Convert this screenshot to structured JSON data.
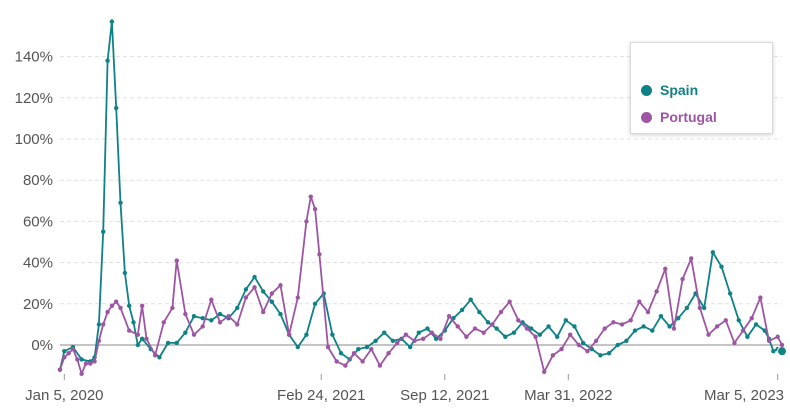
{
  "chart_data": {
    "type": "line",
    "title": "",
    "xlabel": "",
    "ylabel": "",
    "x_tick_labels": [
      "Jan 5, 2020",
      "Feb 24, 2021",
      "Sep 12, 2021",
      "Mar 31, 2022",
      "Mar 5, 2023"
    ],
    "y_tick_labels": [
      "0%",
      "20%",
      "40%",
      "60%",
      "80%",
      "100%",
      "120%",
      "140%"
    ],
    "ylim": [
      -15,
      160
    ],
    "grid": true,
    "legend_position": "top-right",
    "x_start": "2019-12-29",
    "x_end": "2023-03-12",
    "series": [
      {
        "name": "Spain",
        "color": "#0e8285",
        "points": [
          [
            "2019-12-29",
            -12
          ],
          [
            "2020-01-05",
            -3
          ],
          [
            "2020-01-19",
            -1
          ],
          [
            "2020-02-02",
            -7
          ],
          [
            "2020-02-16",
            -8
          ],
          [
            "2020-02-23",
            -6
          ],
          [
            "2020-03-01",
            10
          ],
          [
            "2020-03-08",
            55
          ],
          [
            "2020-03-15",
            138
          ],
          [
            "2020-03-22",
            157
          ],
          [
            "2020-03-29",
            115
          ],
          [
            "2020-04-05",
            69
          ],
          [
            "2020-04-12",
            35
          ],
          [
            "2020-04-19",
            19
          ],
          [
            "2020-04-26",
            11
          ],
          [
            "2020-05-03",
            0
          ],
          [
            "2020-05-10",
            3
          ],
          [
            "2020-05-24",
            -2
          ],
          [
            "2020-06-07",
            -6
          ],
          [
            "2020-06-21",
            1
          ],
          [
            "2020-07-05",
            1
          ],
          [
            "2020-07-19",
            6
          ],
          [
            "2020-08-02",
            14
          ],
          [
            "2020-08-16",
            13
          ],
          [
            "2020-08-30",
            12
          ],
          [
            "2020-09-13",
            15
          ],
          [
            "2020-09-27",
            13
          ],
          [
            "2020-10-11",
            18
          ],
          [
            "2020-10-25",
            27
          ],
          [
            "2020-11-08",
            33
          ],
          [
            "2020-11-22",
            26
          ],
          [
            "2020-12-06",
            21
          ],
          [
            "2020-12-20",
            15
          ],
          [
            "2021-01-03",
            5
          ],
          [
            "2021-01-17",
            -1
          ],
          [
            "2021-01-31",
            5
          ],
          [
            "2021-02-14",
            20
          ],
          [
            "2021-02-28",
            25
          ],
          [
            "2021-03-14",
            5
          ],
          [
            "2021-03-28",
            -4
          ],
          [
            "2021-04-11",
            -7
          ],
          [
            "2021-04-25",
            -2
          ],
          [
            "2021-05-09",
            -1
          ],
          [
            "2021-05-23",
            2
          ],
          [
            "2021-06-06",
            6
          ],
          [
            "2021-06-20",
            2
          ],
          [
            "2021-07-04",
            3
          ],
          [
            "2021-07-18",
            -1
          ],
          [
            "2021-08-01",
            6
          ],
          [
            "2021-08-15",
            8
          ],
          [
            "2021-08-29",
            3
          ],
          [
            "2021-09-12",
            7
          ],
          [
            "2021-09-26",
            13
          ],
          [
            "2021-10-10",
            17
          ],
          [
            "2021-10-24",
            22
          ],
          [
            "2021-11-07",
            16
          ],
          [
            "2021-11-21",
            11
          ],
          [
            "2021-12-05",
            8
          ],
          [
            "2021-12-19",
            4
          ],
          [
            "2022-01-02",
            6
          ],
          [
            "2022-01-16",
            11
          ],
          [
            "2022-01-30",
            8
          ],
          [
            "2022-02-13",
            5
          ],
          [
            "2022-02-27",
            9
          ],
          [
            "2022-03-13",
            4
          ],
          [
            "2022-03-27",
            12
          ],
          [
            "2022-04-10",
            9
          ],
          [
            "2022-04-24",
            1
          ],
          [
            "2022-05-08",
            -2
          ],
          [
            "2022-05-22",
            -5
          ],
          [
            "2022-06-05",
            -4
          ],
          [
            "2022-06-19",
            0
          ],
          [
            "2022-07-03",
            2
          ],
          [
            "2022-07-17",
            7
          ],
          [
            "2022-07-31",
            9
          ],
          [
            "2022-08-14",
            7
          ],
          [
            "2022-08-28",
            14
          ],
          [
            "2022-09-11",
            9
          ],
          [
            "2022-09-25",
            13
          ],
          [
            "2022-10-09",
            18
          ],
          [
            "2022-10-23",
            25
          ],
          [
            "2022-11-06",
            18
          ],
          [
            "2022-11-20",
            45
          ],
          [
            "2022-12-04",
            38
          ],
          [
            "2022-12-18",
            25
          ],
          [
            "2023-01-01",
            12
          ],
          [
            "2023-01-15",
            4
          ],
          [
            "2023-01-29",
            10
          ],
          [
            "2023-02-12",
            7
          ],
          [
            "2023-02-19",
            3
          ],
          [
            "2023-02-26",
            -3
          ],
          [
            "2023-03-05",
            -2
          ],
          [
            "2023-03-12",
            -3
          ]
        ]
      },
      {
        "name": "Portugal",
        "color": "#9e56a4",
        "points": [
          [
            "2019-12-29",
            -12
          ],
          [
            "2020-01-05",
            -6
          ],
          [
            "2020-01-12",
            -4
          ],
          [
            "2020-01-19",
            -2
          ],
          [
            "2020-01-26",
            -7
          ],
          [
            "2020-02-02",
            -14
          ],
          [
            "2020-02-09",
            -9
          ],
          [
            "2020-02-16",
            -9
          ],
          [
            "2020-02-23",
            -8
          ],
          [
            "2020-03-01",
            2
          ],
          [
            "2020-03-08",
            10
          ],
          [
            "2020-03-15",
            16
          ],
          [
            "2020-03-22",
            19
          ],
          [
            "2020-03-29",
            21
          ],
          [
            "2020-04-05",
            18
          ],
          [
            "2020-04-19",
            7
          ],
          [
            "2020-05-03",
            5
          ],
          [
            "2020-05-10",
            19
          ],
          [
            "2020-05-17",
            3
          ],
          [
            "2020-05-31",
            -5
          ],
          [
            "2020-06-14",
            11
          ],
          [
            "2020-06-28",
            18
          ],
          [
            "2020-07-05",
            41
          ],
          [
            "2020-07-19",
            15
          ],
          [
            "2020-08-02",
            5
          ],
          [
            "2020-08-16",
            9
          ],
          [
            "2020-08-30",
            22
          ],
          [
            "2020-09-13",
            11
          ],
          [
            "2020-09-27",
            14
          ],
          [
            "2020-10-11",
            10
          ],
          [
            "2020-10-25",
            23
          ],
          [
            "2020-11-08",
            28
          ],
          [
            "2020-11-22",
            16
          ],
          [
            "2020-12-06",
            25
          ],
          [
            "2020-12-20",
            29
          ],
          [
            "2021-01-03",
            5
          ],
          [
            "2021-01-17",
            23
          ],
          [
            "2021-01-31",
            60
          ],
          [
            "2021-02-07",
            72
          ],
          [
            "2021-02-14",
            66
          ],
          [
            "2021-02-21",
            44
          ],
          [
            "2021-03-07",
            -1
          ],
          [
            "2021-03-21",
            -8
          ],
          [
            "2021-04-04",
            -10
          ],
          [
            "2021-04-18",
            -4
          ],
          [
            "2021-05-02",
            -8
          ],
          [
            "2021-05-16",
            -2
          ],
          [
            "2021-05-30",
            -10
          ],
          [
            "2021-06-13",
            -4
          ],
          [
            "2021-06-27",
            1
          ],
          [
            "2021-07-11",
            5
          ],
          [
            "2021-07-25",
            2
          ],
          [
            "2021-08-08",
            3
          ],
          [
            "2021-08-22",
            6
          ],
          [
            "2021-09-05",
            3
          ],
          [
            "2021-09-19",
            14
          ],
          [
            "2021-10-03",
            9
          ],
          [
            "2021-10-17",
            4
          ],
          [
            "2021-10-31",
            8
          ],
          [
            "2021-11-14",
            6
          ],
          [
            "2021-11-28",
            10
          ],
          [
            "2021-12-12",
            16
          ],
          [
            "2021-12-26",
            21
          ],
          [
            "2022-01-09",
            12
          ],
          [
            "2022-01-23",
            8
          ],
          [
            "2022-02-06",
            4
          ],
          [
            "2022-02-20",
            -13
          ],
          [
            "2022-03-06",
            -5
          ],
          [
            "2022-03-20",
            -2
          ],
          [
            "2022-04-03",
            5
          ],
          [
            "2022-04-17",
            0
          ],
          [
            "2022-05-01",
            -3
          ],
          [
            "2022-05-15",
            2
          ],
          [
            "2022-05-29",
            8
          ],
          [
            "2022-06-12",
            11
          ],
          [
            "2022-06-26",
            10
          ],
          [
            "2022-07-10",
            12
          ],
          [
            "2022-07-24",
            21
          ],
          [
            "2022-08-07",
            16
          ],
          [
            "2022-08-21",
            26
          ],
          [
            "2022-09-04",
            37
          ],
          [
            "2022-09-18",
            8
          ],
          [
            "2022-10-02",
            32
          ],
          [
            "2022-10-16",
            42
          ],
          [
            "2022-10-30",
            18
          ],
          [
            "2022-11-13",
            5
          ],
          [
            "2022-11-27",
            9
          ],
          [
            "2022-12-11",
            12
          ],
          [
            "2022-12-25",
            1
          ],
          [
            "2023-01-08",
            7
          ],
          [
            "2023-01-22",
            13
          ],
          [
            "2023-02-05",
            23
          ],
          [
            "2023-02-19",
            2
          ],
          [
            "2023-03-05",
            4
          ],
          [
            "2023-03-12",
            0
          ]
        ]
      }
    ]
  }
}
